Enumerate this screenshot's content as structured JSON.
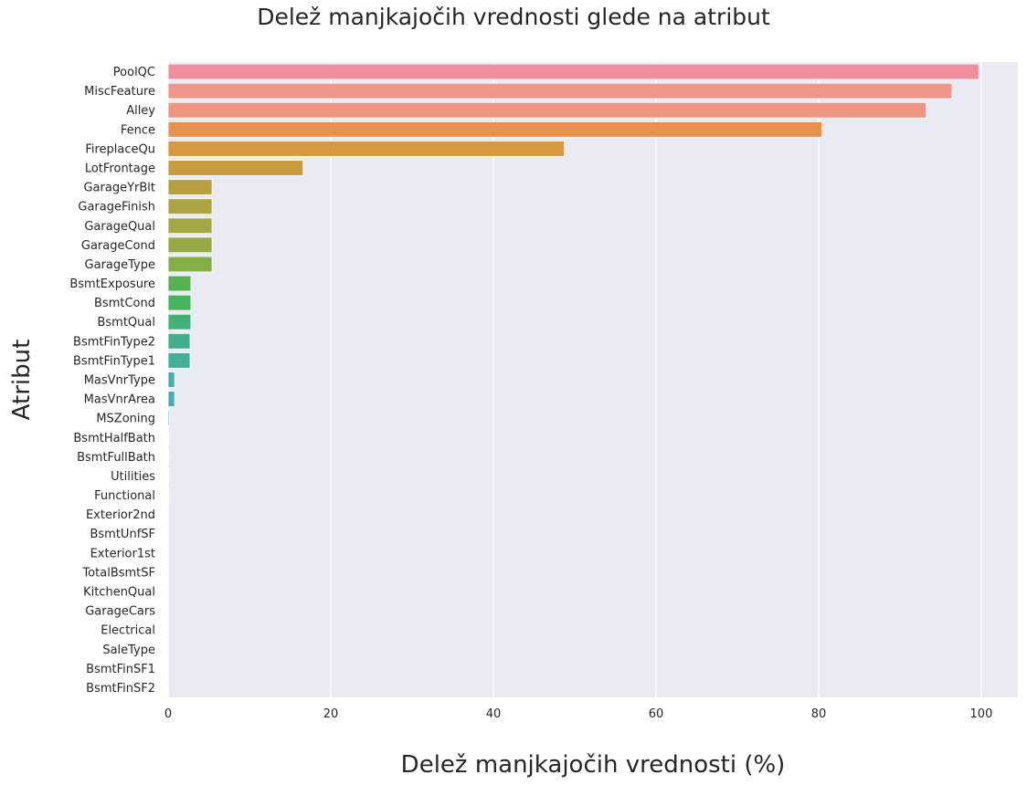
{
  "chart_data": {
    "type": "bar",
    "orientation": "horizontal",
    "title": "Delež manjkajočih vrednosti glede na atribut",
    "xlabel": "Delež manjkajočih vrednosti (%)",
    "ylabel": "Atribut",
    "xlim": [
      0,
      104.5
    ],
    "xticks": [
      0,
      20,
      40,
      60,
      80,
      100
    ],
    "grid": true,
    "background": "#eaeaf2",
    "categories": [
      "PoolQC",
      "MiscFeature",
      "Alley",
      "Fence",
      "FireplaceQu",
      "LotFrontage",
      "GarageYrBlt",
      "GarageFinish",
      "GarageQual",
      "GarageCond",
      "GarageType",
      "BsmtExposure",
      "BsmtCond",
      "BsmtQual",
      "BsmtFinType2",
      "BsmtFinType1",
      "MasVnrType",
      "MasVnrArea",
      "MSZoning",
      "BsmtHalfBath",
      "BsmtFullBath",
      "Utilities",
      "Functional",
      "Exterior2nd",
      "BsmtUnfSF",
      "Exterior1st",
      "TotalBsmtSF",
      "KitchenQual",
      "GarageCars",
      "Electrical",
      "SaleType",
      "BsmtFinSF1",
      "BsmtFinSF2"
    ],
    "values": [
      99.7,
      96.4,
      93.2,
      80.4,
      48.7,
      16.6,
      5.4,
      5.4,
      5.4,
      5.4,
      5.4,
      2.8,
      2.8,
      2.8,
      2.7,
      2.7,
      0.8,
      0.8,
      0.14,
      0.07,
      0.07,
      0.07,
      0.07,
      0.03,
      0.03,
      0.03,
      0.03,
      0.03,
      0.03,
      0.03,
      0.03,
      0.03,
      0.03
    ],
    "colors": [
      "#f0909e",
      "#ef958c",
      "#ed957f",
      "#e8914a",
      "#d9973e",
      "#c89b3e",
      "#b8a042",
      "#ada543",
      "#a3a845",
      "#96aa43",
      "#84af45",
      "#56b24d",
      "#46b35f",
      "#42b177",
      "#43ae8c",
      "#45ae99",
      "#46adab",
      "#48abb9",
      "#4aa8c5",
      "#4fa4d2",
      "#5aa0e1",
      "#739be8",
      "#8e96ea",
      "#a38fe9",
      "#b88be8",
      "#c587e6",
      "#d183e4",
      "#dc7ee0",
      "#e57bd6",
      "#ea7ccc",
      "#ee80c0",
      "#ef85b3",
      "#f089a8"
    ]
  }
}
